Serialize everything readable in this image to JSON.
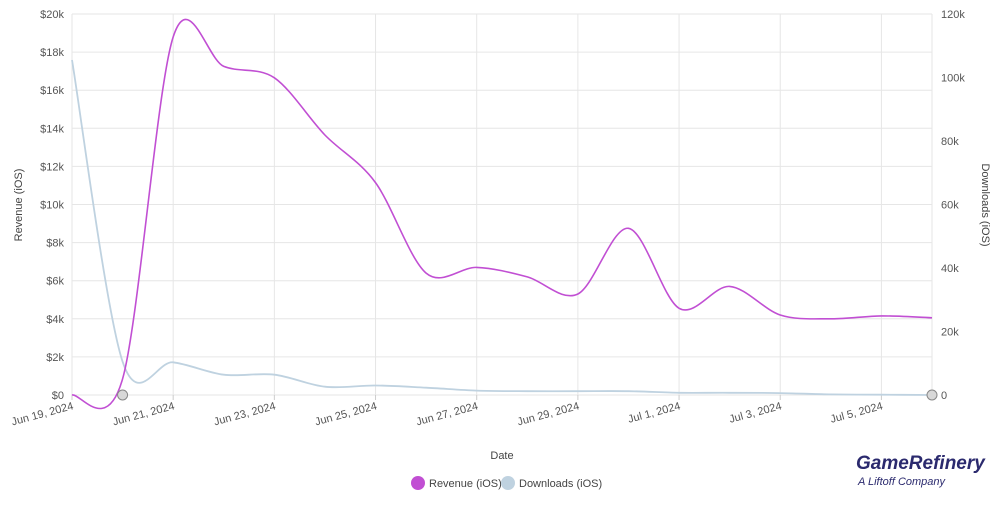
{
  "chart_data": {
    "type": "line",
    "xlabel": "Date",
    "ylabel_left": "Revenue (iOS)",
    "ylabel_right": "Downloads (iOS)",
    "x": [
      "Jun 19, 2024",
      "Jun 20, 2024",
      "Jun 21, 2024",
      "Jun 22, 2024",
      "Jun 23, 2024",
      "Jun 24, 2024",
      "Jun 25, 2024",
      "Jun 26, 2024",
      "Jun 27, 2024",
      "Jun 28, 2024",
      "Jun 29, 2024",
      "Jun 30, 2024",
      "Jul 1, 2024",
      "Jul 2, 2024",
      "Jul 3, 2024",
      "Jul 4, 2024",
      "Jul 5, 2024",
      "Jul 6, 2024"
    ],
    "x_tick_labels": [
      "Jun 19, 2024",
      "Jun 21, 2024",
      "Jun 23, 2024",
      "Jun 25, 2024",
      "Jun 27, 2024",
      "Jun 29, 2024",
      "Jul 1, 2024",
      "Jul 3, 2024",
      "Jul 5, 2024"
    ],
    "y_left_ticks": [
      "$0",
      "$2k",
      "$4k",
      "$6k",
      "$8k",
      "$10k",
      "$12k",
      "$14k",
      "$16k",
      "$18k",
      "$20k"
    ],
    "y_left_range": [
      0,
      20000
    ],
    "y_right_ticks": [
      "0",
      "20k",
      "40k",
      "60k",
      "80k",
      "100k",
      "120k"
    ],
    "y_right_range": [
      0,
      120000
    ],
    "grid": true,
    "legend_position": "bottom-center",
    "series": [
      {
        "name": "Revenue (iOS)",
        "axis": "left",
        "color": "#c14fd3",
        "values": [
          0,
          850,
          18800,
          17250,
          16650,
          13650,
          11150,
          6400,
          6700,
          6200,
          5300,
          8750,
          4550,
          5700,
          4200,
          4000,
          4150,
          4050
        ]
      },
      {
        "name": "Downloads (iOS)",
        "axis": "right",
        "color": "#bfd2e0",
        "values": [
          105500,
          10500,
          10300,
          6400,
          6400,
          2600,
          3000,
          2300,
          1400,
          1200,
          1200,
          1200,
          700,
          700,
          600,
          200,
          100,
          0
        ]
      }
    ]
  },
  "brand": {
    "name": "GameRefinery",
    "tagline": "A Liftoff Company"
  }
}
